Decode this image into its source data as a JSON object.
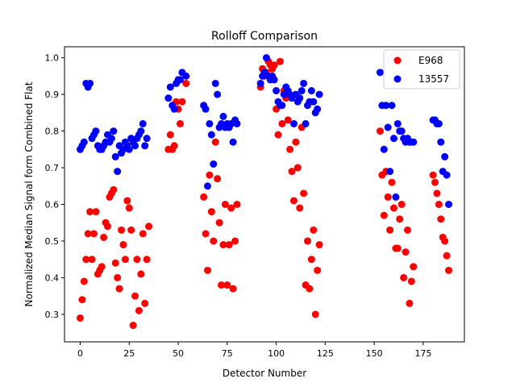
{
  "chart_data": {
    "type": "scatter",
    "title": "Rolloff Comparison",
    "xlabel": "Detector Number",
    "ylabel": "Normalized Median Signal form Combined Flat",
    "xlim": [
      -8,
      196
    ],
    "ylim": [
      0.225,
      1.03
    ],
    "xticks": [
      0,
      25,
      50,
      75,
      100,
      125,
      150,
      175
    ],
    "yticks": [
      0.3,
      0.4,
      0.5,
      0.6,
      0.7,
      0.8,
      0.9,
      1.0
    ],
    "xtick_labels": [
      "0",
      "25",
      "50",
      "75",
      "100",
      "125",
      "150",
      "175"
    ],
    "ytick_labels": [
      "0.3",
      "0.4",
      "0.5",
      "0.6",
      "0.7",
      "0.8",
      "0.9",
      "1.0"
    ],
    "grid": false,
    "legend_position": "top-right",
    "series": [
      {
        "name": "E968",
        "color": "#ff0000",
        "points": [
          [
            0,
            0.29
          ],
          [
            1,
            0.34
          ],
          [
            2,
            0.39
          ],
          [
            3,
            0.45
          ],
          [
            4,
            0.52
          ],
          [
            5,
            0.58
          ],
          [
            6,
            0.45
          ],
          [
            7,
            0.52
          ],
          [
            8,
            0.58
          ],
          [
            9,
            0.41
          ],
          [
            10,
            0.42
          ],
          [
            11,
            0.43
          ],
          [
            12,
            0.51
          ],
          [
            13,
            0.55
          ],
          [
            14,
            0.54
          ],
          [
            15,
            0.62
          ],
          [
            16,
            0.63
          ],
          [
            17,
            0.64
          ],
          [
            18,
            0.44
          ],
          [
            19,
            0.4
          ],
          [
            20,
            0.37
          ],
          [
            21,
            0.53
          ],
          [
            22,
            0.49
          ],
          [
            23,
            0.45
          ],
          [
            24,
            0.61
          ],
          [
            25,
            0.59
          ],
          [
            26,
            0.53
          ],
          [
            27,
            0.27
          ],
          [
            28,
            0.35
          ],
          [
            29,
            0.45
          ],
          [
            30,
            0.31
          ],
          [
            31,
            0.41
          ],
          [
            32,
            0.52
          ],
          [
            33,
            0.33
          ],
          [
            34,
            0.45
          ],
          [
            35,
            0.54
          ],
          [
            45,
            0.75
          ],
          [
            46,
            0.79
          ],
          [
            47,
            0.75
          ],
          [
            48,
            0.76
          ],
          [
            49,
            0.88
          ],
          [
            50,
            0.86
          ],
          [
            51,
            0.82
          ],
          [
            52,
            0.88
          ],
          [
            54,
            0.93
          ],
          [
            63,
            0.62
          ],
          [
            64,
            0.52
          ],
          [
            65,
            0.42
          ],
          [
            66,
            0.68
          ],
          [
            67,
            0.58
          ],
          [
            68,
            0.5
          ],
          [
            69,
            0.77
          ],
          [
            70,
            0.67
          ],
          [
            71,
            0.55
          ],
          [
            72,
            0.38
          ],
          [
            73,
            0.49
          ],
          [
            74,
            0.6
          ],
          [
            75,
            0.38
          ],
          [
            76,
            0.49
          ],
          [
            77,
            0.59
          ],
          [
            78,
            0.37
          ],
          [
            79,
            0.5
          ],
          [
            80,
            0.6
          ],
          [
            92,
            0.92
          ],
          [
            93,
            0.97
          ],
          [
            94,
            0.95
          ],
          [
            95,
            0.96
          ],
          [
            96,
            0.99
          ],
          [
            97,
            0.98
          ],
          [
            98,
            0.97
          ],
          [
            99,
            0.98
          ],
          [
            100,
            0.86
          ],
          [
            101,
            0.79
          ],
          [
            102,
            0.99
          ],
          [
            103,
            0.82
          ],
          [
            104,
            0.91
          ],
          [
            105,
            0.89
          ],
          [
            106,
            0.83
          ],
          [
            107,
            0.75
          ],
          [
            108,
            0.69
          ],
          [
            109,
            0.61
          ],
          [
            110,
            0.77
          ],
          [
            111,
            0.7
          ],
          [
            112,
            0.59
          ],
          [
            113,
            0.81
          ],
          [
            114,
            0.63
          ],
          [
            115,
            0.38
          ],
          [
            116,
            0.5
          ],
          [
            117,
            0.37
          ],
          [
            118,
            0.45
          ],
          [
            119,
            0.53
          ],
          [
            120,
            0.3
          ],
          [
            121,
            0.42
          ],
          [
            122,
            0.49
          ],
          [
            153,
            0.8
          ],
          [
            154,
            0.68
          ],
          [
            155,
            0.57
          ],
          [
            156,
            0.69
          ],
          [
            157,
            0.62
          ],
          [
            158,
            0.53
          ],
          [
            159,
            0.66
          ],
          [
            160,
            0.59
          ],
          [
            161,
            0.48
          ],
          [
            162,
            0.48
          ],
          [
            163,
            0.56
          ],
          [
            164,
            0.6
          ],
          [
            165,
            0.4
          ],
          [
            166,
            0.47
          ],
          [
            167,
            0.53
          ],
          [
            168,
            0.33
          ],
          [
            169,
            0.39
          ],
          [
            170,
            0.43
          ],
          [
            180,
            0.68
          ],
          [
            181,
            0.66
          ],
          [
            182,
            0.63
          ],
          [
            183,
            0.6
          ],
          [
            184,
            0.56
          ],
          [
            185,
            0.51
          ],
          [
            186,
            0.5
          ],
          [
            187,
            0.46
          ],
          [
            188,
            0.42
          ]
        ]
      },
      {
        "name": "13557",
        "color": "#0000ff",
        "points": [
          [
            0,
            0.75
          ],
          [
            1,
            0.76
          ],
          [
            2,
            0.77
          ],
          [
            3,
            0.93
          ],
          [
            4,
            0.92
          ],
          [
            5,
            0.93
          ],
          [
            6,
            0.78
          ],
          [
            7,
            0.79
          ],
          [
            8,
            0.8
          ],
          [
            9,
            0.76
          ],
          [
            10,
            0.75
          ],
          [
            11,
            0.75
          ],
          [
            12,
            0.76
          ],
          [
            13,
            0.77
          ],
          [
            14,
            0.79
          ],
          [
            15,
            0.77
          ],
          [
            16,
            0.78
          ],
          [
            17,
            0.8
          ],
          [
            18,
            0.73
          ],
          [
            19,
            0.69
          ],
          [
            20,
            0.76
          ],
          [
            21,
            0.74
          ],
          [
            22,
            0.75
          ],
          [
            23,
            0.77
          ],
          [
            24,
            0.76
          ],
          [
            25,
            0.75
          ],
          [
            26,
            0.78
          ],
          [
            27,
            0.77
          ],
          [
            28,
            0.76
          ],
          [
            29,
            0.78
          ],
          [
            30,
            0.79
          ],
          [
            31,
            0.8
          ],
          [
            32,
            0.82
          ],
          [
            33,
            0.76
          ],
          [
            34,
            0.78
          ],
          [
            45,
            0.89
          ],
          [
            46,
            0.92
          ],
          [
            47,
            0.87
          ],
          [
            48,
            0.86
          ],
          [
            49,
            0.93
          ],
          [
            50,
            0.94
          ],
          [
            51,
            0.94
          ],
          [
            52,
            0.96
          ],
          [
            54,
            0.95
          ],
          [
            63,
            0.87
          ],
          [
            64,
            0.86
          ],
          [
            65,
            0.65
          ],
          [
            66,
            0.82
          ],
          [
            67,
            0.79
          ],
          [
            68,
            0.71
          ],
          [
            69,
            0.93
          ],
          [
            70,
            0.9
          ],
          [
            71,
            0.81
          ],
          [
            72,
            0.82
          ],
          [
            73,
            0.84
          ],
          [
            74,
            0.81
          ],
          [
            75,
            0.82
          ],
          [
            76,
            0.81
          ],
          [
            77,
            0.82
          ],
          [
            78,
            0.77
          ],
          [
            79,
            0.83
          ],
          [
            80,
            0.82
          ],
          [
            92,
            0.93
          ],
          [
            93,
            0.95
          ],
          [
            94,
            0.96
          ],
          [
            95,
            1.0
          ],
          [
            96,
            0.95
          ],
          [
            97,
            0.94
          ],
          [
            98,
            0.95
          ],
          [
            99,
            0.94
          ],
          [
            100,
            0.91
          ],
          [
            101,
            0.88
          ],
          [
            102,
            0.87
          ],
          [
            103,
            0.87
          ],
          [
            104,
            0.9
          ],
          [
            105,
            0.92
          ],
          [
            106,
            0.91
          ],
          [
            107,
            0.9
          ],
          [
            108,
            0.89
          ],
          [
            109,
            0.82
          ],
          [
            110,
            0.9
          ],
          [
            111,
            0.88
          ],
          [
            112,
            0.89
          ],
          [
            113,
            0.91
          ],
          [
            114,
            0.93
          ],
          [
            115,
            0.82
          ],
          [
            116,
            0.87
          ],
          [
            117,
            0.88
          ],
          [
            118,
            0.91
          ],
          [
            119,
            0.88
          ],
          [
            120,
            0.85
          ],
          [
            121,
            0.86
          ],
          [
            122,
            0.9
          ],
          [
            153,
            0.96
          ],
          [
            154,
            0.87
          ],
          [
            155,
            0.75
          ],
          [
            156,
            0.87
          ],
          [
            157,
            0.81
          ],
          [
            158,
            0.69
          ],
          [
            159,
            0.87
          ],
          [
            160,
            0.78
          ],
          [
            161,
            0.62
          ],
          [
            162,
            0.82
          ],
          [
            163,
            0.8
          ],
          [
            164,
            0.8
          ],
          [
            165,
            0.78
          ],
          [
            166,
            0.77
          ],
          [
            167,
            0.78
          ],
          [
            168,
            0.77
          ],
          [
            169,
            0.77
          ],
          [
            170,
            0.77
          ],
          [
            180,
            0.83
          ],
          [
            181,
            0.83
          ],
          [
            182,
            0.82
          ],
          [
            183,
            0.82
          ],
          [
            184,
            0.77
          ],
          [
            185,
            0.69
          ],
          [
            186,
            0.73
          ],
          [
            187,
            0.68
          ],
          [
            188,
            0.6
          ]
        ]
      }
    ]
  }
}
